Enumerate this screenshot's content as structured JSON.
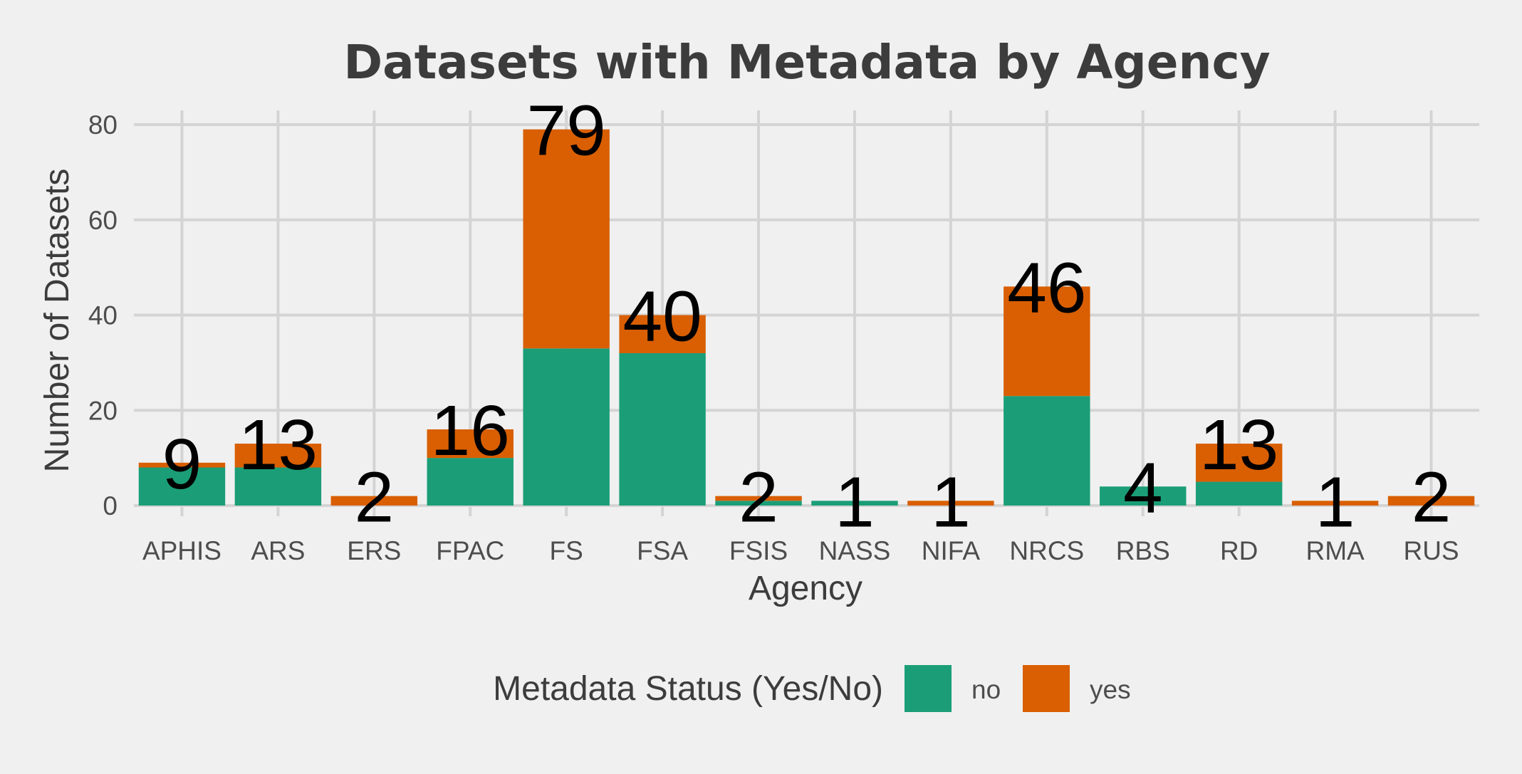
{
  "chart_data": {
    "type": "bar",
    "stacked": true,
    "title": "Datasets with Metadata by Agency",
    "xlabel": "Agency",
    "ylabel": "Number of Datasets",
    "ylim": [
      0,
      80
    ],
    "yticks": [
      0,
      20,
      40,
      60,
      80
    ],
    "grid": true,
    "legend_position": "bottom",
    "legend_title": "Metadata Status (Yes/No)",
    "categories": [
      "APHIS",
      "ARS",
      "ERS",
      "FPAC",
      "FS",
      "FSA",
      "FSIS",
      "NASS",
      "NIFA",
      "NRCS",
      "RBS",
      "RD",
      "RMA",
      "RUS"
    ],
    "series": [
      {
        "name": "no",
        "color": "#1b9e77",
        "values": [
          8,
          8,
          0,
          10,
          33,
          32,
          1,
          1,
          0,
          23,
          4,
          5,
          0,
          0
        ]
      },
      {
        "name": "yes",
        "color": "#d95f02",
        "values": [
          1,
          5,
          2,
          6,
          46,
          8,
          1,
          0,
          1,
          23,
          0,
          8,
          1,
          2
        ]
      }
    ],
    "totals": [
      9,
      13,
      2,
      16,
      79,
      40,
      2,
      1,
      1,
      46,
      4,
      13,
      1,
      2
    ]
  }
}
